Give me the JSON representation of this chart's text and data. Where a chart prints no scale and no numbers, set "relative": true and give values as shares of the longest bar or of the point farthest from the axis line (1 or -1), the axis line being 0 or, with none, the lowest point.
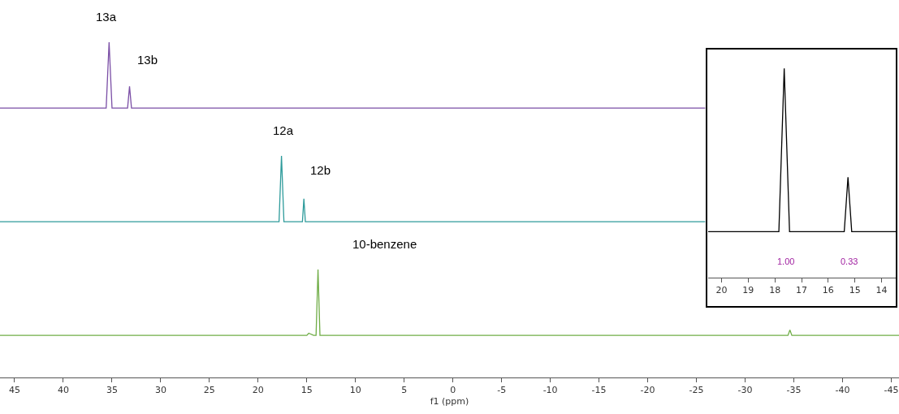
{
  "chart_data": [
    {
      "type": "line",
      "relative": true,
      "color": "#7b4fa6",
      "tick_labels": false,
      "xlim": [
        46.5,
        -45.8
      ],
      "xticks": [
        45,
        40,
        35,
        30,
        25,
        20,
        15,
        10,
        5,
        0,
        -5,
        -10,
        -15,
        -20,
        -25,
        -30,
        -35,
        -40,
        -45
      ],
      "x": [
        46.5,
        35.6,
        35.3,
        35.0,
        33.4,
        33.2,
        33.0,
        -25.9
      ],
      "values": [
        0,
        0,
        1,
        0,
        0,
        0.33,
        0,
        0
      ],
      "annotations": [
        {
          "text": "13a",
          "x": 35.6,
          "y": 1
        },
        "13b"
      ]
    },
    {
      "type": "line",
      "relative": true,
      "color": "#2e9b9b",
      "tick_labels": false,
      "xlim": [
        46.5,
        -45.8
      ],
      "xticks": [
        45,
        40,
        35,
        30,
        25,
        20,
        15,
        10,
        5,
        0,
        -5,
        -10,
        -15,
        -20,
        -25,
        -30,
        -35,
        -40,
        -45
      ],
      "x": [
        46.5,
        17.85,
        17.6,
        17.35,
        15.45,
        15.3,
        15.15,
        -25.9
      ],
      "values": [
        0,
        0,
        1,
        0,
        0,
        0.35,
        0,
        0
      ],
      "annotations": [
        {
          "text": "12a",
          "x": 17.4,
          "y": 1
        },
        "12b"
      ]
    },
    {
      "type": "line",
      "relative": true,
      "color": "#70ad47",
      "xlabel": "f1 (ppm)",
      "xlim": [
        46.5,
        -45.8
      ],
      "xticks": [
        45,
        40,
        35,
        30,
        25,
        20,
        15,
        10,
        5,
        0,
        -5,
        -10,
        -15,
        -20,
        -25,
        -30,
        -35,
        -40,
        -45
      ],
      "x": [
        46.5,
        15.0,
        14.8,
        14.3,
        14.05,
        13.85,
        13.65,
        -34.4,
        -34.6,
        -34.8,
        -45.8
      ],
      "values": [
        0.39,
        0.39,
        0.41,
        0.39,
        0.39,
        1,
        0.39,
        0.39,
        0.44,
        0.39,
        0.39
      ],
      "annotations": [
        "10-benzene"
      ]
    },
    {
      "type": "line",
      "relative": true,
      "color": "#000000",
      "xlim": [
        20.5,
        13.47
      ],
      "xticks": [
        20,
        19,
        18,
        17,
        16,
        15,
        14
      ],
      "x": [
        20.5,
        17.85,
        17.65,
        17.45,
        15.4,
        15.26,
        15.12,
        13.47
      ],
      "values": [
        0.22,
        0.22,
        1,
        0.22,
        0.22,
        0.48,
        0.22,
        0.22
      ],
      "annotations": [
        "1.00",
        "0.33"
      ]
    }
  ]
}
